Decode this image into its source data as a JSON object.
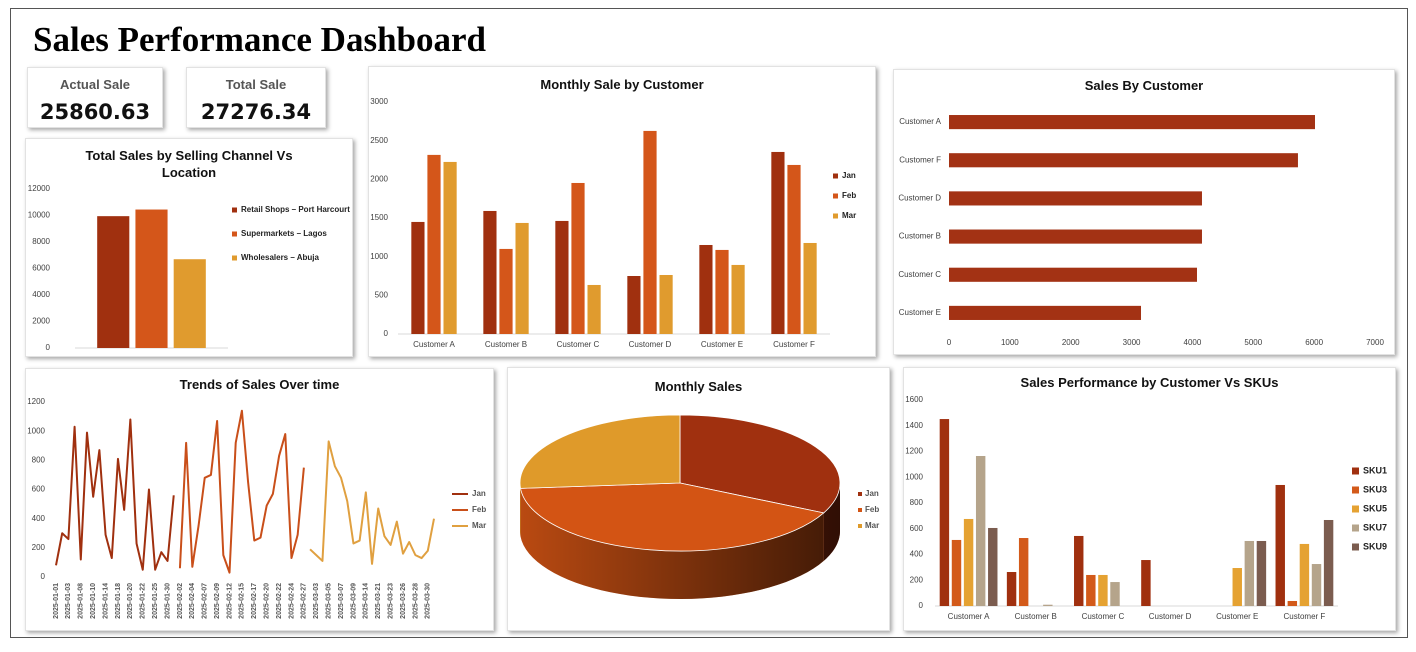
{
  "title": "Sales Performance Dashboard",
  "kpis": [
    {
      "label": "Actual Sale",
      "value": 25860.63
    },
    {
      "label": "Total Sale",
      "value": 27276.34
    }
  ],
  "chart_data": [
    {
      "type": "bar",
      "title": "Total Sales by Selling Channel Vs Location",
      "categories": [
        null
      ],
      "series": [
        {
          "name": "Retail Shops – Port Harcourt",
          "color": "#a0300f",
          "values": [
            9950
          ]
        },
        {
          "name": "Supermarkets – Lagos",
          "color": "#d4561a",
          "values": [
            10450
          ]
        },
        {
          "name": "Wholesalers – Abuja",
          "color": "#e09b2e",
          "values": [
            6700
          ]
        }
      ],
      "ylim": [
        0,
        12000
      ],
      "yticks": [
        0,
        2000,
        4000,
        6000,
        8000,
        10000,
        12000
      ],
      "legend": "right"
    },
    {
      "type": "bar",
      "title": "Monthly Sale by Customer",
      "categories": [
        "Customer A",
        "Customer B",
        "Customer C",
        "Customer D",
        "Customer E",
        "Customer F"
      ],
      "series": [
        {
          "name": "Jan",
          "color": "#a0300f",
          "values": [
            1449,
            1591,
            1462,
            750,
            1151,
            2354
          ]
        },
        {
          "name": "Feb",
          "color": "#d4561a",
          "values": [
            2316,
            1100,
            1953,
            2626,
            1087,
            2186
          ]
        },
        {
          "name": "Mar",
          "color": "#e09b2e",
          "values": [
            2225,
            1436,
            634,
            763,
            893,
            1177
          ]
        }
      ],
      "ylim": [
        0,
        3000
      ],
      "yticks": [
        0,
        500,
        1000,
        1500,
        2000,
        2500,
        3000
      ],
      "legend": "right"
    },
    {
      "type": "bar",
      "orientation": "horizontal",
      "title": "Sales By Customer",
      "categories": [
        "Customer A",
        "Customer F",
        "Customer D",
        "Customer B",
        "Customer C",
        "Customer E"
      ],
      "values": [
        6014,
        5734,
        4157,
        4157,
        4075,
        3155
      ],
      "color": "#a33214",
      "xlim": [
        0,
        7000
      ],
      "xticks": [
        0,
        1000,
        2000,
        3000,
        4000,
        5000,
        6000,
        7000
      ]
    },
    {
      "type": "line",
      "title": "Trends of Sales Over time",
      "categories": [
        "2025-01-01",
        null,
        "2025-01-03",
        null,
        "2025-01-08",
        null,
        "2025-01-10",
        null,
        "2025-01-14",
        null,
        "2025-01-18",
        null,
        "2025-01-20",
        null,
        "2025-01-22",
        null,
        "2025-01-25",
        null,
        "2025-01-30",
        null,
        "2025-02-02",
        null,
        "2025-02-04",
        null,
        "2025-02-07",
        null,
        "2025-02-09",
        null,
        "2025-02-12",
        null,
        "2025-02-15",
        null,
        "2025-02-17",
        null,
        "2025-02-20",
        null,
        "2025-02-22",
        null,
        "2025-02-24",
        null,
        "2025-02-27",
        null,
        "2025-03-03",
        null,
        "2025-03-05",
        null,
        "2025-03-07",
        null,
        "2025-03-09",
        null,
        "2025-03-14",
        null,
        "2025-03-21",
        null,
        "2025-03-23",
        null,
        "2025-03-26",
        null,
        "2025-03-28",
        null,
        "2025-03-30",
        null
      ],
      "series": [
        {
          "name": "Jan",
          "color": "#a0300f",
          "values": [
            80,
            300,
            260,
            1030,
            120,
            990,
            550,
            870,
            290,
            130,
            810,
            460,
            1080,
            230,
            50,
            600,
            50,
            170,
            110,
            560,
            null,
            null,
            null,
            null,
            null,
            null,
            null,
            null,
            null,
            null,
            null,
            null,
            null,
            null,
            null,
            null,
            null,
            null,
            null,
            null,
            null,
            null,
            null,
            null,
            null,
            null,
            null,
            null,
            null,
            null,
            null,
            null,
            null,
            null,
            null,
            null,
            null,
            null,
            null,
            null,
            null,
            null
          ]
        },
        {
          "name": "Feb",
          "color": "#c94f1a",
          "values": [
            null,
            null,
            null,
            null,
            null,
            null,
            null,
            null,
            null,
            null,
            null,
            null,
            null,
            null,
            null,
            null,
            null,
            null,
            null,
            null,
            60,
            920,
            70,
            350,
            680,
            700,
            1070,
            150,
            30,
            920,
            1140,
            650,
            250,
            270,
            490,
            570,
            830,
            980,
            130,
            290,
            750,
            null,
            null,
            null,
            null,
            null,
            null,
            null,
            null,
            null,
            null,
            null,
            null,
            null,
            null,
            null,
            null,
            null,
            null,
            null,
            null,
            null
          ]
        },
        {
          "name": "Mar",
          "color": "#e0a040",
          "values": [
            null,
            null,
            null,
            null,
            null,
            null,
            null,
            null,
            null,
            null,
            null,
            null,
            null,
            null,
            null,
            null,
            null,
            null,
            null,
            null,
            null,
            null,
            null,
            null,
            null,
            null,
            null,
            null,
            null,
            null,
            null,
            null,
            null,
            null,
            null,
            null,
            null,
            null,
            null,
            null,
            null,
            190,
            150,
            110,
            930,
            760,
            680,
            520,
            230,
            250,
            580,
            90,
            470,
            280,
            220,
            380,
            160,
            240,
            150,
            130,
            180,
            400
          ]
        }
      ],
      "ylim": [
        0,
        1200
      ],
      "yticks": [
        0,
        200,
        400,
        600,
        800,
        1000,
        1200
      ],
      "legend": "right"
    },
    {
      "type": "pie",
      "title": "Monthly Sales",
      "categories": [
        "Jan",
        "Feb",
        "Mar"
      ],
      "values": [
        8757,
        11268,
        7128
      ],
      "colors": [
        "#a0300f",
        "#d35414",
        "#df9a2a"
      ],
      "legend": "right"
    },
    {
      "type": "bar",
      "title": "Sales Performance by Customer Vs SKUs",
      "categories": [
        "Customer A",
        "Customer B",
        "Customer C",
        "Customer D",
        "Customer E",
        "Customer F"
      ],
      "series": [
        {
          "name": "SKU1",
          "color": "#a0300f",
          "values": [
            1452,
            264,
            544,
            357,
            null,
            940
          ]
        },
        {
          "name": "SKU3",
          "color": "#d35a1a",
          "values": [
            513,
            528,
            241,
            null,
            null,
            39
          ]
        },
        {
          "name": "SKU5",
          "color": "#e5a232",
          "values": [
            676,
            null,
            241,
            null,
            295,
            482
          ]
        },
        {
          "name": "SKU7",
          "color": "#b5a48b",
          "values": [
            1165,
            10,
            186,
            null,
            505,
            326
          ]
        },
        {
          "name": "SKU9",
          "color": "#7b5c4f",
          "values": [
            606,
            null,
            null,
            null,
            505,
            668
          ]
        }
      ],
      "ylim": [
        0,
        1600
      ],
      "yticks": [
        0,
        200,
        400,
        600,
        800,
        1000,
        1200,
        1400,
        1600
      ],
      "legend": "right"
    }
  ]
}
